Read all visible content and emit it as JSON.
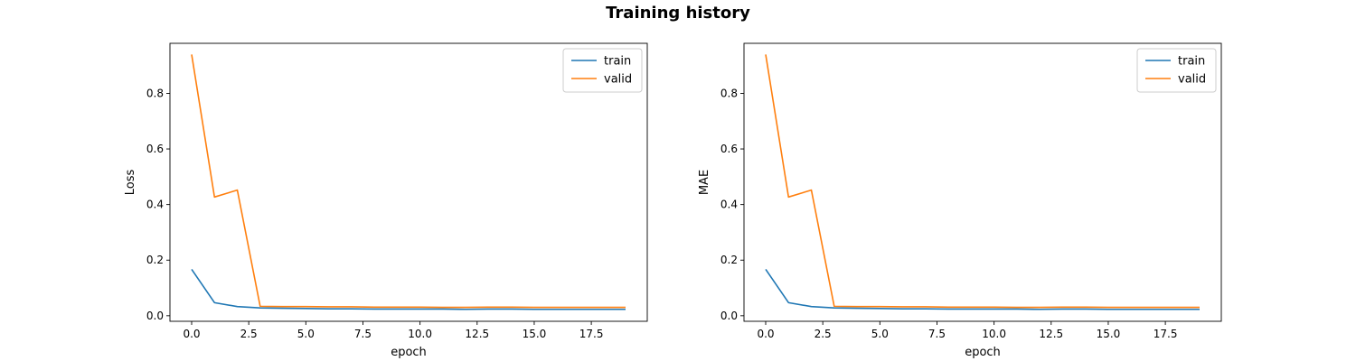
{
  "figure": {
    "title": "Training history"
  },
  "chart_data": [
    {
      "type": "line",
      "title": "",
      "xlabel": "epoch",
      "ylabel": "Loss",
      "xlim": [
        -0.95,
        19.95
      ],
      "ylim": [
        -0.02,
        0.98
      ],
      "xticks": [
        0.0,
        2.5,
        5.0,
        7.5,
        10.0,
        12.5,
        15.0,
        17.5
      ],
      "xtick_labels": [
        "0.0",
        "2.5",
        "5.0",
        "7.5",
        "10.0",
        "12.5",
        "15.0",
        "17.5"
      ],
      "yticks": [
        0.0,
        0.2,
        0.4,
        0.6,
        0.8
      ],
      "ytick_labels": [
        "0.0",
        "0.2",
        "0.4",
        "0.6",
        "0.8"
      ],
      "grid": false,
      "legend_position": "top-right",
      "x": [
        0,
        1,
        2,
        3,
        4,
        5,
        6,
        7,
        8,
        9,
        10,
        11,
        12,
        13,
        14,
        15,
        16,
        17,
        18,
        19
      ],
      "series": [
        {
          "name": "train",
          "color": "#1f77b4",
          "values": [
            0.167,
            0.047,
            0.033,
            0.028,
            0.027,
            0.026,
            0.025,
            0.025,
            0.024,
            0.024,
            0.024,
            0.024,
            0.023,
            0.024,
            0.024,
            0.023,
            0.023,
            0.023,
            0.023,
            0.023
          ]
        },
        {
          "name": "valid",
          "color": "#ff7f0e",
          "values": [
            0.94,
            0.427,
            0.452,
            0.034,
            0.033,
            0.033,
            0.032,
            0.032,
            0.031,
            0.031,
            0.031,
            0.03,
            0.03,
            0.031,
            0.031,
            0.03,
            0.03,
            0.03,
            0.03,
            0.03
          ]
        }
      ]
    },
    {
      "type": "line",
      "title": "",
      "xlabel": "epoch",
      "ylabel": "MAE",
      "xlim": [
        -0.95,
        19.95
      ],
      "ylim": [
        -0.02,
        0.98
      ],
      "xticks": [
        0.0,
        2.5,
        5.0,
        7.5,
        10.0,
        12.5,
        15.0,
        17.5
      ],
      "xtick_labels": [
        "0.0",
        "2.5",
        "5.0",
        "7.5",
        "10.0",
        "12.5",
        "15.0",
        "17.5"
      ],
      "yticks": [
        0.0,
        0.2,
        0.4,
        0.6,
        0.8
      ],
      "ytick_labels": [
        "0.0",
        "0.2",
        "0.4",
        "0.6",
        "0.8"
      ],
      "grid": false,
      "legend_position": "top-right",
      "x": [
        0,
        1,
        2,
        3,
        4,
        5,
        6,
        7,
        8,
        9,
        10,
        11,
        12,
        13,
        14,
        15,
        16,
        17,
        18,
        19
      ],
      "series": [
        {
          "name": "train",
          "color": "#1f77b4",
          "values": [
            0.167,
            0.047,
            0.033,
            0.028,
            0.027,
            0.026,
            0.025,
            0.025,
            0.024,
            0.024,
            0.024,
            0.024,
            0.023,
            0.024,
            0.024,
            0.023,
            0.023,
            0.023,
            0.023,
            0.023
          ]
        },
        {
          "name": "valid",
          "color": "#ff7f0e",
          "values": [
            0.94,
            0.427,
            0.452,
            0.034,
            0.033,
            0.033,
            0.032,
            0.032,
            0.031,
            0.031,
            0.031,
            0.03,
            0.03,
            0.031,
            0.031,
            0.03,
            0.03,
            0.03,
            0.03,
            0.03
          ]
        }
      ]
    }
  ]
}
